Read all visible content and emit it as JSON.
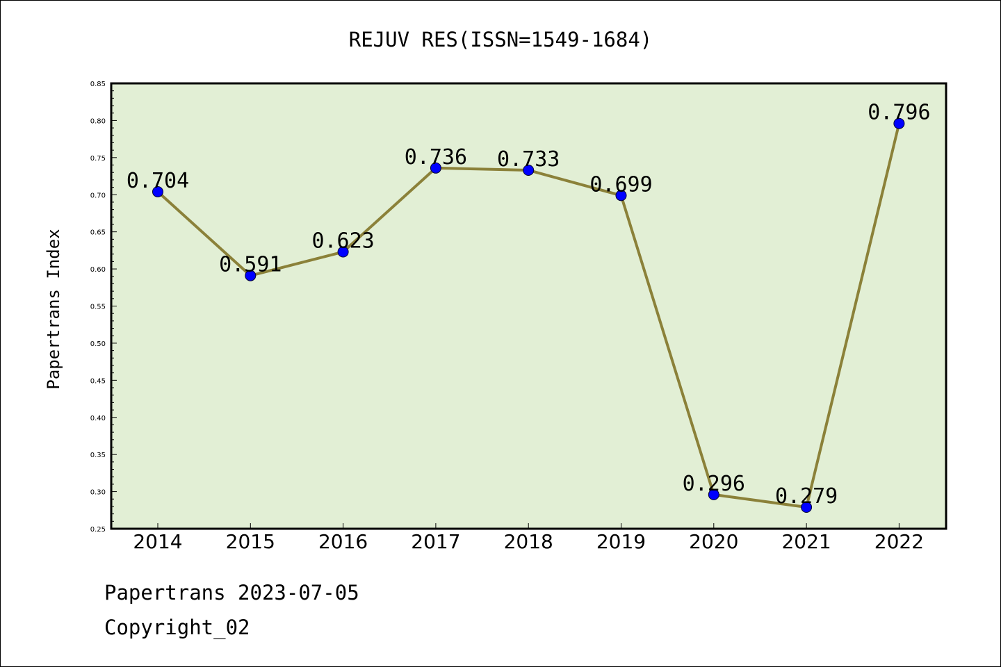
{
  "chart_data": {
    "type": "line",
    "title": "REJUV RES(ISSN=1549-1684)",
    "xlabel": "",
    "ylabel": "Papertrans Index",
    "categories": [
      "2014",
      "2015",
      "2016",
      "2017",
      "2018",
      "2019",
      "2020",
      "2021",
      "2022"
    ],
    "values": [
      0.704,
      0.591,
      0.623,
      0.736,
      0.733,
      0.699,
      0.296,
      0.279,
      0.796
    ],
    "data_labels": [
      "0.704",
      "0.591",
      "0.623",
      "0.736",
      "0.733",
      "0.699",
      "0.296",
      "0.279",
      "0.796"
    ],
    "ylim": [
      0.25,
      0.85
    ],
    "yticks": [
      "0.25",
      "0.30",
      "0.35",
      "0.40",
      "0.45",
      "0.50",
      "0.55",
      "0.60",
      "0.65",
      "0.70",
      "0.75",
      "0.80",
      "0.85"
    ],
    "grid": false,
    "legend": "none",
    "colors": {
      "plot_background": "#e2efd5",
      "line": "#8b8139",
      "marker": "#0000ff"
    }
  },
  "footer": {
    "line1": "Papertrans 2023-07-05",
    "line2": "Copyright_02"
  }
}
